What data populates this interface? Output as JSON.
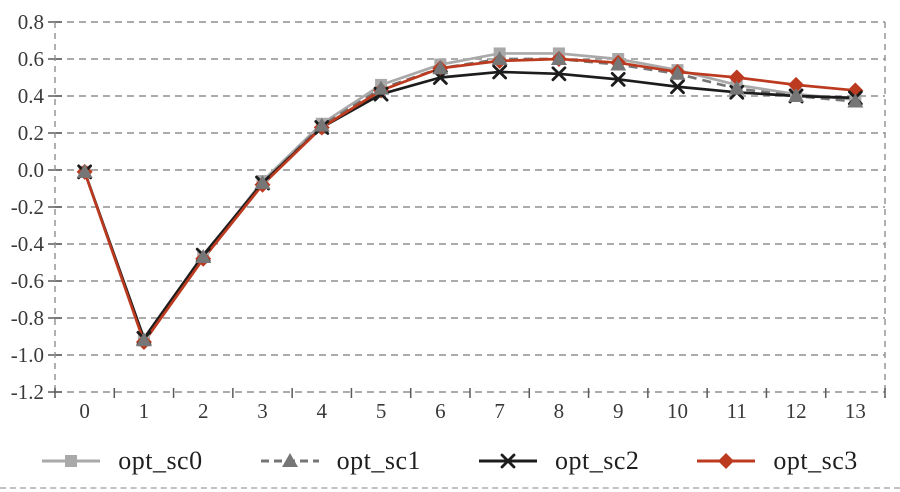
{
  "chart_data": {
    "type": "line",
    "title": "",
    "xlabel": "",
    "ylabel": "",
    "x": [
      0,
      1,
      2,
      3,
      4,
      5,
      6,
      7,
      8,
      9,
      10,
      11,
      12,
      13
    ],
    "xticks": [
      "0",
      "1",
      "2",
      "3",
      "4",
      "5",
      "6",
      "7",
      "8",
      "9",
      "10",
      "11",
      "12",
      "13"
    ],
    "yticks": [
      "0.8",
      "0.6",
      "0.4",
      "0.2",
      "0.0",
      "-0.2",
      "-0.4",
      "-0.6",
      "-0.8",
      "-1.0",
      "-1.2"
    ],
    "ylim": [
      -1.2,
      0.8
    ],
    "ytick_step": 0.2,
    "grid": "horizontal-dashed",
    "grid_color": "#8f8f8f",
    "axis_text_color": "#3a3a3a",
    "legend_position": "bottom",
    "series": [
      {
        "name": "opt_sc0",
        "color": "#a9a9a9",
        "marker": "square",
        "line_style": "solid",
        "values": [
          -0.01,
          -0.92,
          -0.47,
          -0.06,
          0.25,
          0.46,
          0.57,
          0.63,
          0.63,
          0.6,
          0.54,
          0.46,
          0.41,
          0.38
        ]
      },
      {
        "name": "opt_sc1",
        "color": "#767676",
        "marker": "triangle",
        "line_style": "dashed",
        "values": [
          -0.01,
          -0.92,
          -0.47,
          -0.07,
          0.24,
          0.44,
          0.55,
          0.6,
          0.6,
          0.57,
          0.52,
          0.44,
          0.4,
          0.37
        ]
      },
      {
        "name": "opt_sc2",
        "color": "#1c1c1c",
        "marker": "x",
        "line_style": "solid",
        "values": [
          -0.01,
          -0.91,
          -0.46,
          -0.07,
          0.23,
          0.41,
          0.5,
          0.53,
          0.52,
          0.49,
          0.45,
          0.42,
          0.4,
          0.39
        ]
      },
      {
        "name": "opt_sc3",
        "color": "#bc3a1f",
        "marker": "diamond",
        "line_style": "solid",
        "values": [
          -0.01,
          -0.93,
          -0.48,
          -0.08,
          0.23,
          0.43,
          0.55,
          0.59,
          0.6,
          0.58,
          0.53,
          0.5,
          0.46,
          0.43
        ]
      }
    ]
  }
}
